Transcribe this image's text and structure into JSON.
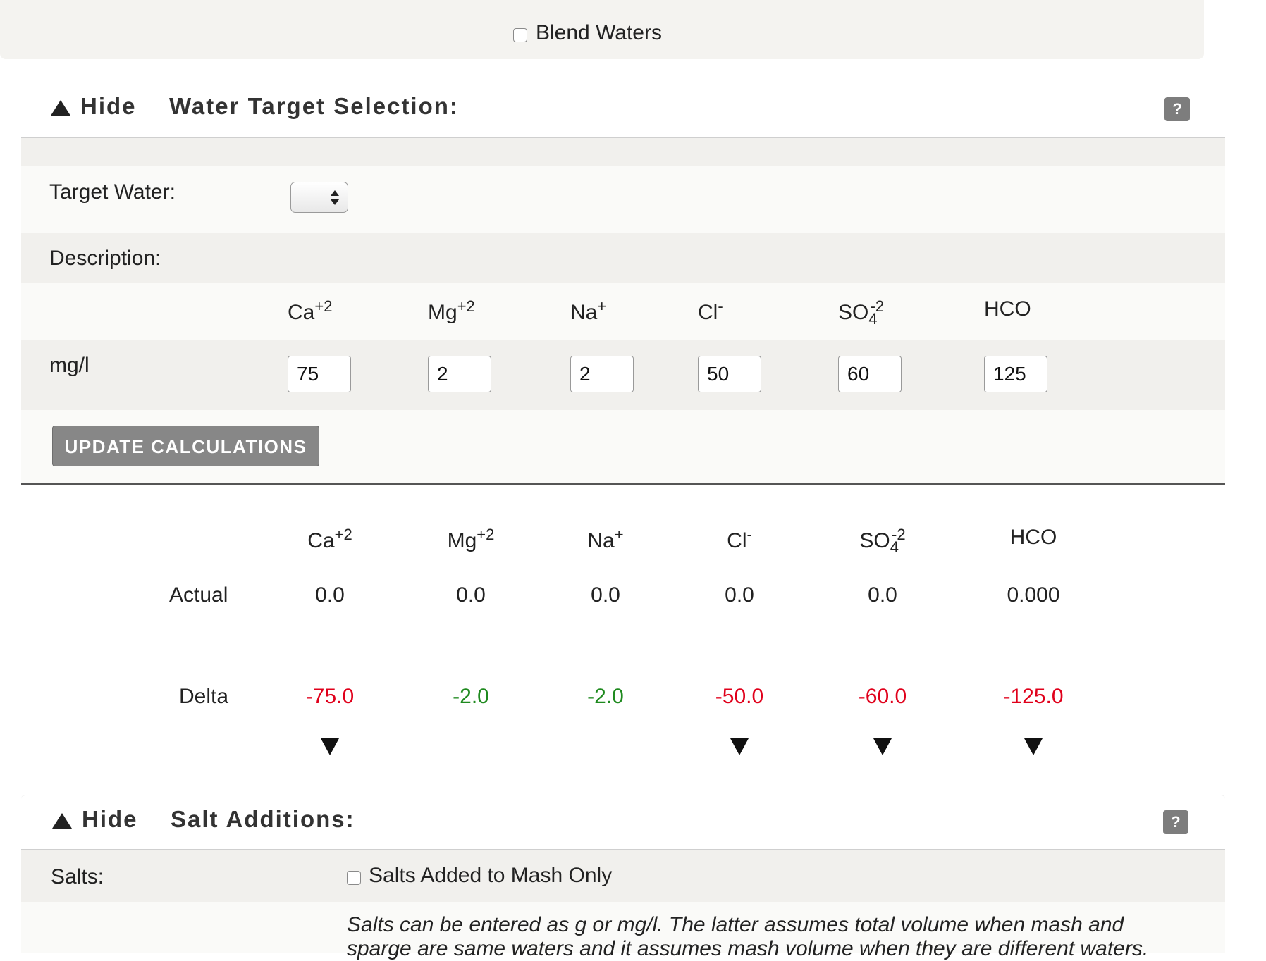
{
  "blend": {
    "label": "Blend Waters",
    "checked": false
  },
  "water_target": {
    "hide_label": "Hide",
    "title": "Water Target Selection:",
    "help": "?",
    "target_water_label": "Target Water:",
    "description_label": "Description:",
    "ions": {
      "ca": {
        "base": "Ca",
        "sup": "+2"
      },
      "mg": {
        "base": "Mg",
        "sup": "+2"
      },
      "na": {
        "base": "Na",
        "sup": "+"
      },
      "cl": {
        "base": "Cl",
        "sup": "-"
      },
      "so4": {
        "base": "SO",
        "sub": "4",
        "sup": "-2"
      },
      "hco": {
        "base": "HCO"
      }
    },
    "unit_label": "mg/l",
    "values": {
      "ca": "75",
      "mg": "2",
      "na": "2",
      "cl": "50",
      "so4": "60",
      "hco": "125"
    },
    "update_button": "UPDATE CALCULATIONS"
  },
  "results": {
    "actual_label": "Actual",
    "delta_label": "Delta",
    "actual": {
      "ca": "0.0",
      "mg": "0.0",
      "na": "0.0",
      "cl": "0.0",
      "so4": "0.0",
      "hco": "0.000"
    },
    "delta": {
      "ca": "-75.0",
      "mg": "-2.0",
      "na": "-2.0",
      "cl": "-50.0",
      "so4": "-60.0",
      "hco": "-125.0"
    },
    "colors": {
      "negative": "#e0001b",
      "positive": "#1f8a1f"
    }
  },
  "salt_additions": {
    "hide_label": "Hide",
    "title": "Salt Additions:",
    "help": "?",
    "salts_label": "Salts:",
    "mash_only_label": "Salts Added to Mash Only",
    "mash_only_checked": false,
    "note": "Salts can be entered as g or mg/l. The latter assumes total volume when mash and sparge are same waters and it assumes mash volume when they are different waters."
  }
}
